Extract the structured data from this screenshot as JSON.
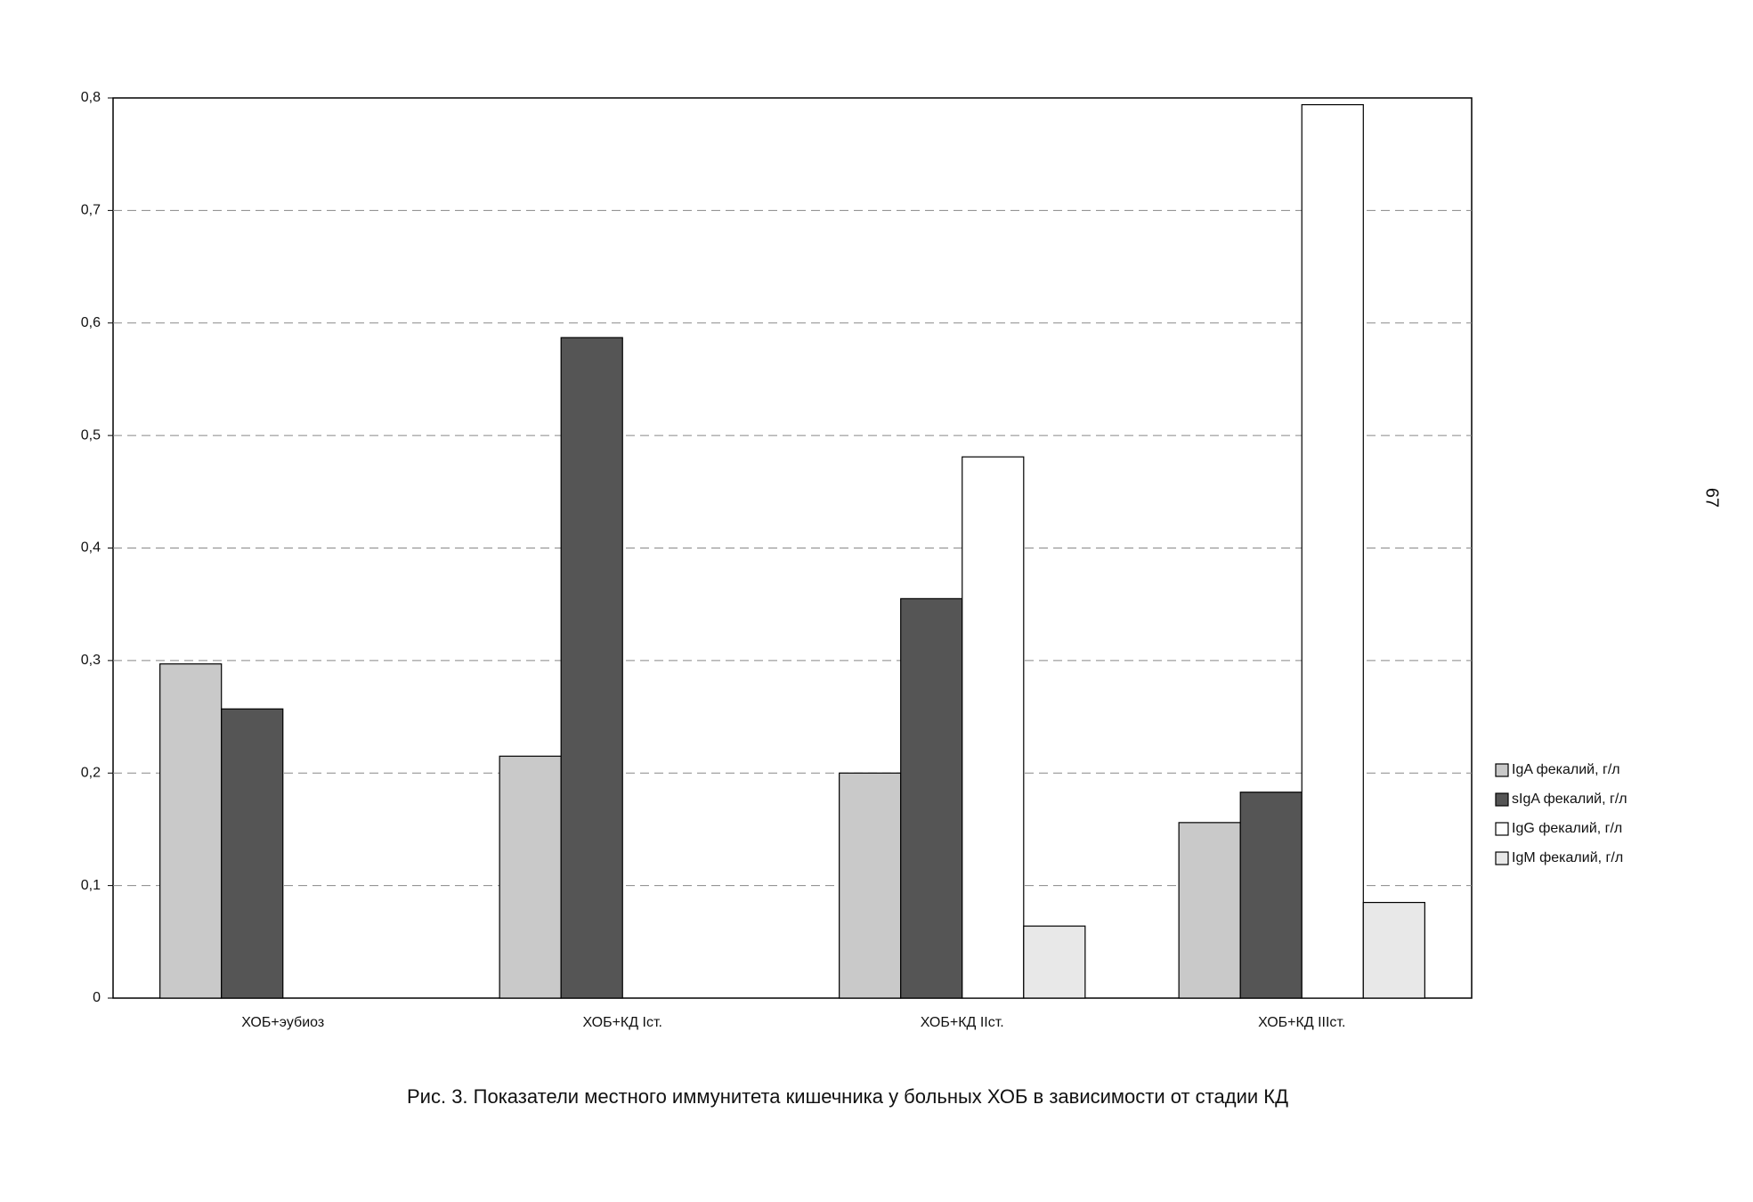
{
  "chart_data": {
    "type": "bar",
    "caption": "Рис. 3. Показатели местного иммунитета кишечника у больных ХОБ в зависимости от стадии КД",
    "page_number": "67",
    "categories": [
      "ХОБ+эубиоз",
      "ХОБ+КД Iст.",
      "ХОБ+КД IIст.",
      "ХОБ+КД IIIст."
    ],
    "series": [
      {
        "name": "IgA фекалий, г/л",
        "color": "#c9c9c9",
        "values": [
          0.297,
          0.215,
          0.2,
          0.156
        ]
      },
      {
        "name": "sIgA фекалий, г/л",
        "color": "#555555",
        "values": [
          0.257,
          0.587,
          0.355,
          0.183
        ]
      },
      {
        "name": "IgG фекалий, г/л",
        "color": "#ffffff",
        "values": [
          null,
          null,
          0.481,
          0.794
        ]
      },
      {
        "name": "IgM фекалий, г/л",
        "color": "#e8e8e8",
        "values": [
          null,
          null,
          0.064,
          0.085
        ]
      }
    ],
    "ylim": [
      0,
      0.8
    ],
    "yticks": [
      0,
      {
        "value": 0.1,
        "label": "0,1"
      },
      {
        "value": 0.2,
        "label": "0,2"
      },
      {
        "value": 0.3,
        "label": "0,3"
      },
      {
        "value": 0.4,
        "label": "0,4"
      },
      {
        "value": 0.5,
        "label": "0,5"
      },
      {
        "value": 0.6,
        "label": "0,6"
      },
      {
        "value": 0.7,
        "label": "0,7"
      },
      {
        "value": 0.8,
        "label": "0,8"
      }
    ],
    "grid": true,
    "legend": "right"
  }
}
